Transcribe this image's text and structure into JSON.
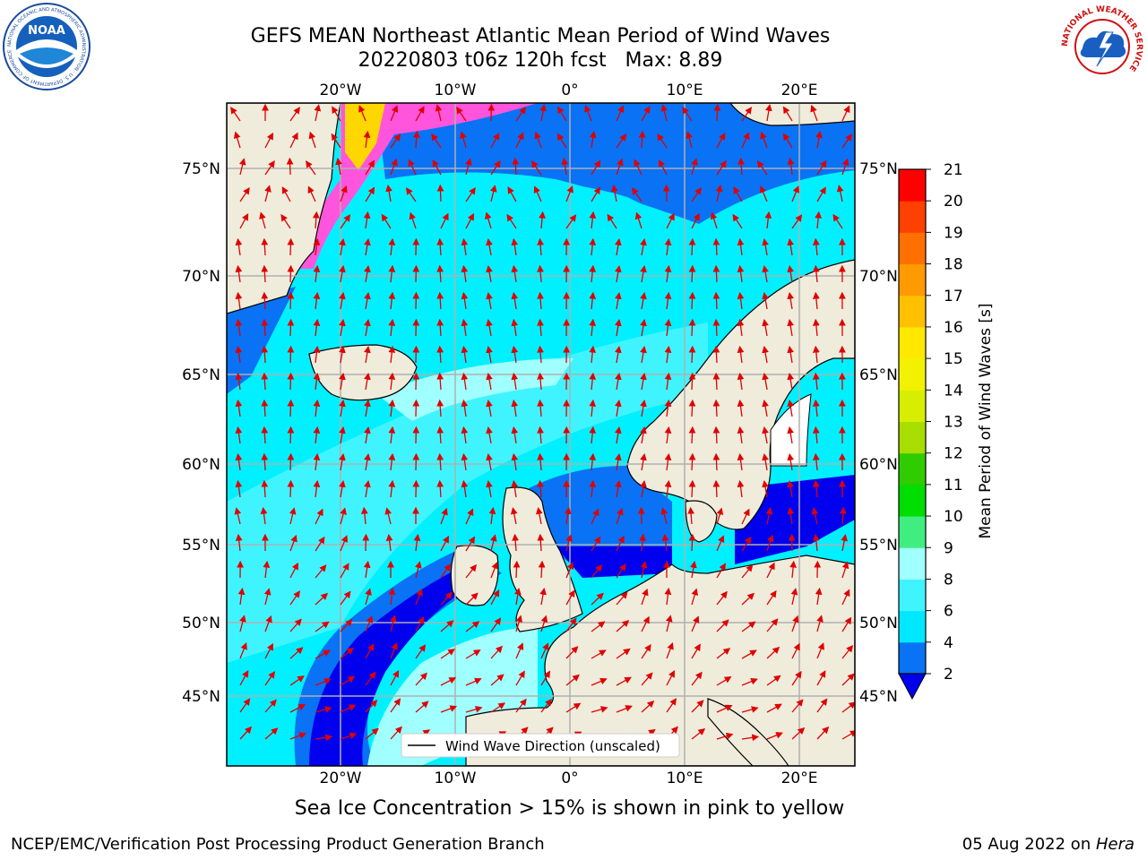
{
  "header": {
    "title_line1": "GEFS MEAN Northeast Atlantic Mean Period of Wind Waves",
    "title_line2": "20220803 t06z 120h fcst   Max: 8.89"
  },
  "logos": {
    "left": {
      "name": "noaa-logo",
      "text": "NOAA",
      "ring_text": "NATIONAL OCEANIC AND ATMOSPHERIC ADMINISTRATION · U.S. DEPARTMENT OF COMMERCE"
    },
    "right": {
      "name": "nws-logo",
      "ring_text": "NATIONAL WEATHER SERVICE"
    }
  },
  "map": {
    "lon_ticks_top": [
      "20°W",
      "10°W",
      "0°",
      "10°E",
      "20°E"
    ],
    "lon_ticks_bottom": [
      "20°W",
      "10°W",
      "0°",
      "10°E",
      "20°E"
    ],
    "lat_ticks_left": [
      "75°N",
      "70°N",
      "65°N",
      "60°N",
      "55°N",
      "50°N",
      "45°N"
    ],
    "lat_ticks_right": [
      "75°N",
      "70°N",
      "65°N",
      "60°N",
      "55°N",
      "50°N",
      "45°N"
    ],
    "legend_label": "Wind Wave Direction (unscaled)",
    "colors": {
      "land": "#efecdc",
      "arrow": "#e00000",
      "grid": "#b0b0b0"
    }
  },
  "colorbar": {
    "label": "Mean Period of Wind Waves [s]",
    "ticks": [
      "2",
      "4",
      "6",
      "8",
      "9",
      "10",
      "11",
      "12",
      "13",
      "14",
      "15",
      "16",
      "17",
      "18",
      "19",
      "20",
      "21"
    ],
    "colors": [
      "#0a72f5",
      "#00e8ff",
      "#40f4ff",
      "#a0ffff",
      "#40ee80",
      "#00dd00",
      "#30cc00",
      "#a8dd00",
      "#d8ee00",
      "#f2f200",
      "#ffe800",
      "#ffc000",
      "#ff9a00",
      "#ff7000",
      "#ff4000",
      "#ff0000"
    ],
    "under_color": "#0000ee"
  },
  "footer": {
    "sea_ice_note": "Sea Ice Concentration > 15% is shown in pink to yellow",
    "left": "NCEP/EMC/Verification Post Processing Product Generation Branch",
    "right_prefix": "05 Aug 2022 on ",
    "right_host": "Hera"
  }
}
